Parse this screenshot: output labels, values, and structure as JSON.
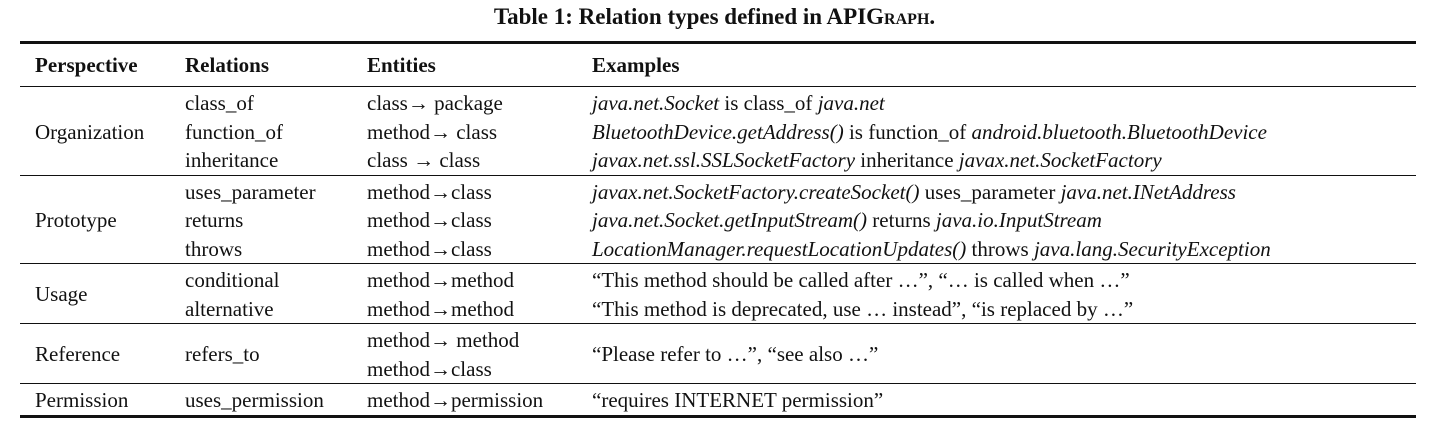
{
  "caption": {
    "prefix": "Table 1: Relation types defined in API",
    "smallcaps": "Graph",
    "suffix": "."
  },
  "headers": [
    "Perspective",
    "Relations",
    "Entities",
    "Examples"
  ],
  "groups": [
    {
      "perspective": "Organization",
      "rows": [
        {
          "relation": "class_of",
          "entity": "class→ package",
          "example": [
            {
              "t": "java.net.Socket",
              "i": true
            },
            {
              "t": " is class_of ",
              "i": false
            },
            {
              "t": "java.net",
              "i": true
            }
          ]
        },
        {
          "relation": "function_of",
          "entity": "method→ class",
          "example": [
            {
              "t": "BluetoothDevice.getAddress()",
              "i": true
            },
            {
              "t": " is function_of ",
              "i": false
            },
            {
              "t": "android.bluetooth.BluetoothDevice",
              "i": true
            }
          ]
        },
        {
          "relation": "inheritance",
          "entity": "class → class",
          "example": [
            {
              "t": "javax.net.ssl.SSLSocketFactory",
              "i": true
            },
            {
              "t": " inheritance ",
              "i": false
            },
            {
              "t": "javax.net.SocketFactory",
              "i": true
            }
          ]
        }
      ]
    },
    {
      "perspective": "Prototype",
      "rows": [
        {
          "relation": "uses_parameter",
          "entity": "method→class",
          "example": [
            {
              "t": "javax.net.SocketFactory.createSocket()",
              "i": true
            },
            {
              "t": " uses_parameter ",
              "i": false
            },
            {
              "t": "java.net.INetAddress",
              "i": true
            }
          ]
        },
        {
          "relation": "returns",
          "entity": "method→class",
          "example": [
            {
              "t": "java.net.Socket.getInputStream()",
              "i": true
            },
            {
              "t": " returns ",
              "i": false
            },
            {
              "t": "java.io.InputStream",
              "i": true
            }
          ]
        },
        {
          "relation": "throws",
          "entity": "method→class",
          "example": [
            {
              "t": "LocationManager.requestLocationUpdates()",
              "i": true
            },
            {
              "t": " throws ",
              "i": false
            },
            {
              "t": "java.lang.SecurityException",
              "i": true
            }
          ]
        }
      ]
    },
    {
      "perspective": "Usage",
      "rows": [
        {
          "relation": "conditional",
          "entity": "method→method",
          "example": [
            {
              "t": "“This method should be called after …”, “… is called when …”",
              "i": false
            }
          ]
        },
        {
          "relation": "alternative",
          "entity": "method→method",
          "example": [
            {
              "t": "“This method is deprecated, use … instead”, “is replaced by …”",
              "i": false
            }
          ]
        }
      ]
    },
    {
      "perspective": "Reference",
      "rows": [
        {
          "relation": "refers_to",
          "entity": "method→ method",
          "entity2": "method→class",
          "example": [
            {
              "t": "“Please refer to …”, “see also …”",
              "i": false
            }
          ]
        }
      ]
    },
    {
      "perspective": "Permission",
      "rows": [
        {
          "relation": "uses_permission",
          "entity": "method→permission",
          "example": [
            {
              "t": "“requires INTERNET permission”",
              "i": false
            }
          ]
        }
      ]
    }
  ]
}
